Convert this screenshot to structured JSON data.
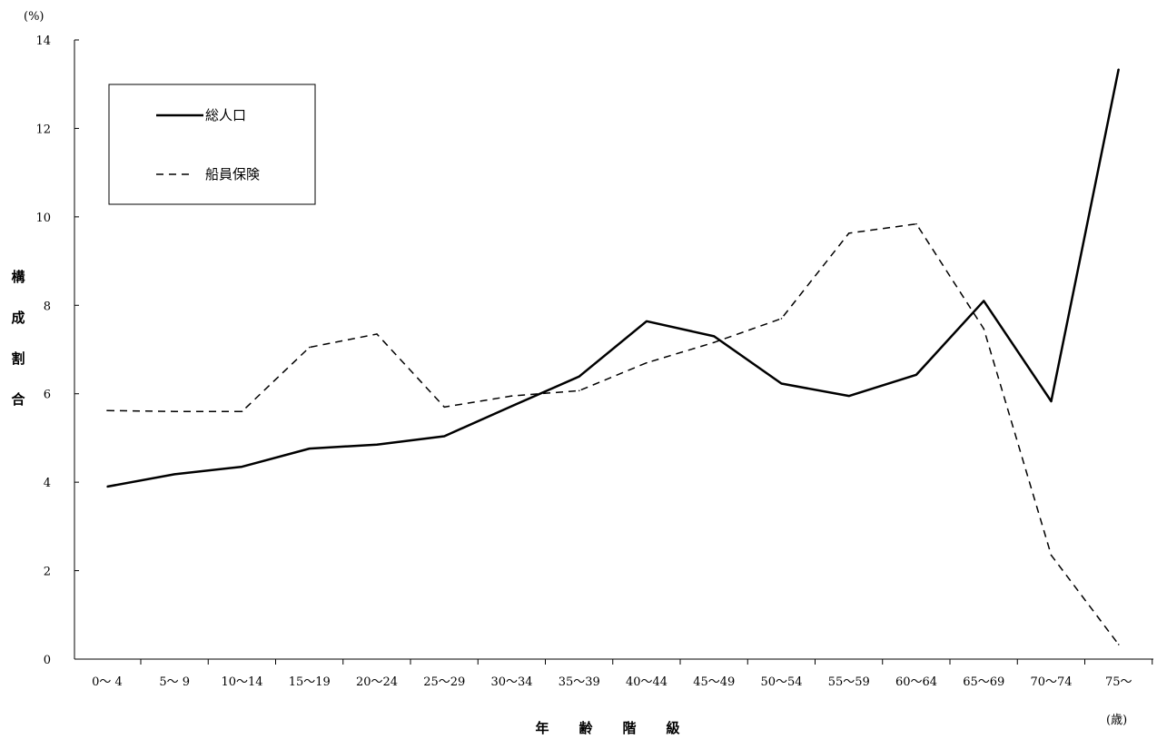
{
  "chart_data": {
    "type": "line",
    "y_unit": "(%)",
    "x_unit": "(歳)",
    "xlabel": "年 齢 階 級",
    "ylabel": "構成割合",
    "ylim": [
      0,
      14
    ],
    "y_ticks": [
      0,
      2,
      4,
      6,
      8,
      10,
      12,
      14
    ],
    "grid": false,
    "legend_position": "top-left",
    "categories": [
      "0〜 4",
      "5〜 9",
      "10〜14",
      "15〜19",
      "20〜24",
      "25〜29",
      "30〜34",
      "35〜39",
      "40〜44",
      "45〜49",
      "50〜54",
      "55〜59",
      "60〜64",
      "65〜69",
      "70〜74",
      "75〜"
    ],
    "series": [
      {
        "name": "総人口",
        "style": "solid",
        "color": "#000000",
        "values": [
          3.9,
          4.18,
          4.35,
          4.76,
          4.85,
          5.04,
          5.72,
          6.39,
          7.64,
          7.3,
          6.23,
          5.95,
          6.43,
          8.1,
          5.83,
          13.34
        ]
      },
      {
        "name": "船員保険",
        "style": "dashed",
        "color": "#000000",
        "values": [
          5.62,
          5.6,
          5.6,
          7.05,
          7.35,
          5.7,
          5.95,
          6.07,
          6.7,
          7.16,
          7.7,
          9.63,
          9.84,
          7.47,
          2.35,
          0.33
        ]
      }
    ]
  }
}
